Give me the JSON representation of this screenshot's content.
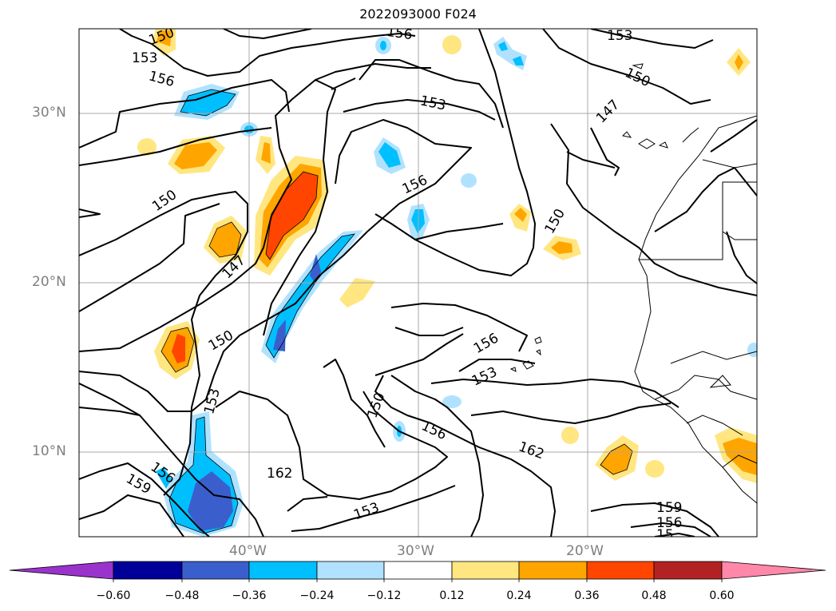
{
  "title": "2022093000 F024",
  "lat_labels": [
    "30°N",
    "20°N",
    "10°N"
  ],
  "lon_labels": [
    "40°W",
    "30°W",
    "20°W"
  ],
  "colorbar": {
    "ticks": [
      "−0.60",
      "−0.48",
      "−0.36",
      "−0.24",
      "−0.12",
      "0.12",
      "0.24",
      "0.36",
      "0.48",
      "0.60"
    ],
    "colors": [
      "#9a33cc",
      "#000099",
      "#3a5fcd",
      "#00bfff",
      "#b0e2ff",
      "#ffffff",
      "#ffe680",
      "#ffa500",
      "#ff4500",
      "#b22222",
      "#ff88aa"
    ]
  },
  "contour_labels": [
    "150",
    "156",
    "153",
    "156",
    "153",
    "150",
    "147",
    "153",
    "156",
    "150",
    "150",
    "147",
    "150",
    "156",
    "153",
    "150",
    "153",
    "156",
    "162",
    "156",
    "159",
    "153",
    "162",
    "159",
    "156",
    "15"
  ]
}
